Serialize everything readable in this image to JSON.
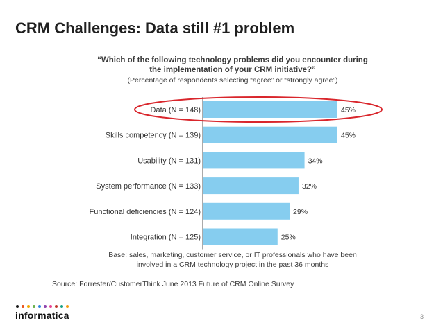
{
  "slide": {
    "title": "CRM Challenges: Data still #1 problem",
    "page_number": "3"
  },
  "logo": {
    "text": "informatica",
    "dot_colors": [
      "#1a1a1a",
      "#e8541e",
      "#f2a900",
      "#6ab04c",
      "#2e86de",
      "#8e44ad",
      "#e84393",
      "#c0392b",
      "#16a085",
      "#f39c12"
    ]
  },
  "chart_data": {
    "type": "bar",
    "orientation": "horizontal",
    "title": "“Which of the following technology problems did you encounter during the implementation of your CRM initiative?”",
    "subtitle": "(Percentage of respondents selecting “agree” or “strongly agree”)",
    "categories": [
      "Data (N = 148)",
      "Skills competency (N = 139)",
      "Usability (N = 131)",
      "System performance (N = 133)",
      "Functional deficiencies (N = 124)",
      "Integration (N = 125)"
    ],
    "values": [
      45,
      45,
      34,
      32,
      29,
      25
    ],
    "value_labels": [
      "45%",
      "45%",
      "34%",
      "32%",
      "29%",
      "25%"
    ],
    "bar_color": "#86cdef",
    "highlight": {
      "category_index": 0,
      "color": "#d9262c"
    },
    "note": "Base: sales, marketing, customer service, or IT professionals who have been involved in a CRM technology project in the past 36 months",
    "source": "Source: Forrester/CustomerThink June 2013 Future of CRM Online Survey",
    "grid": false,
    "legend": false
  }
}
